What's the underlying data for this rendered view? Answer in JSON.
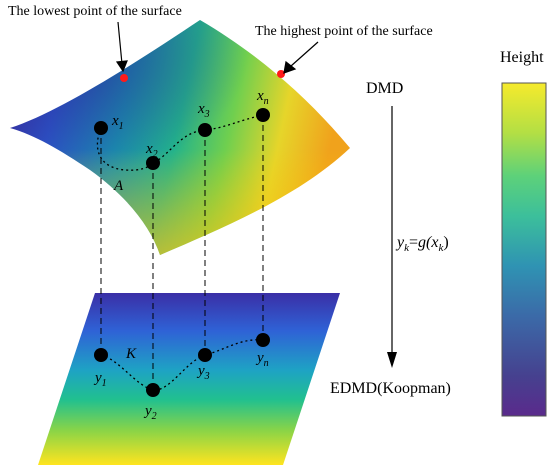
{
  "annotations": {
    "lowest": "The lowest point of the surface",
    "highest": "The highest point of the surface"
  },
  "flow": {
    "top": "DMD",
    "bottom": "EDMD(Koopman)"
  },
  "mapping": {
    "y": "y",
    "k": "k",
    "eq": "=",
    "g": "g(",
    "x": "x",
    "k2": "k",
    "close": ")"
  },
  "colorbar": {
    "title": "Height"
  },
  "surface_points": [
    {
      "base": "x",
      "sub": "1"
    },
    {
      "base": "x",
      "sub": "2"
    },
    {
      "base": "x",
      "sub": "3"
    },
    {
      "base": "x",
      "sub": "n"
    }
  ],
  "plane_points": [
    {
      "base": "y",
      "sub": "1"
    },
    {
      "base": "y",
      "sub": "2"
    },
    {
      "base": "y",
      "sub": "3"
    },
    {
      "base": "y",
      "sub": "n"
    }
  ],
  "operator_labels": {
    "surface": "A",
    "plane": "K"
  },
  "colors": {
    "viridis_low": "#440154",
    "viridis_mid": "#21908d",
    "viridis_high": "#fde725",
    "marker": "#000000",
    "extreme_point": "#ff0000"
  }
}
